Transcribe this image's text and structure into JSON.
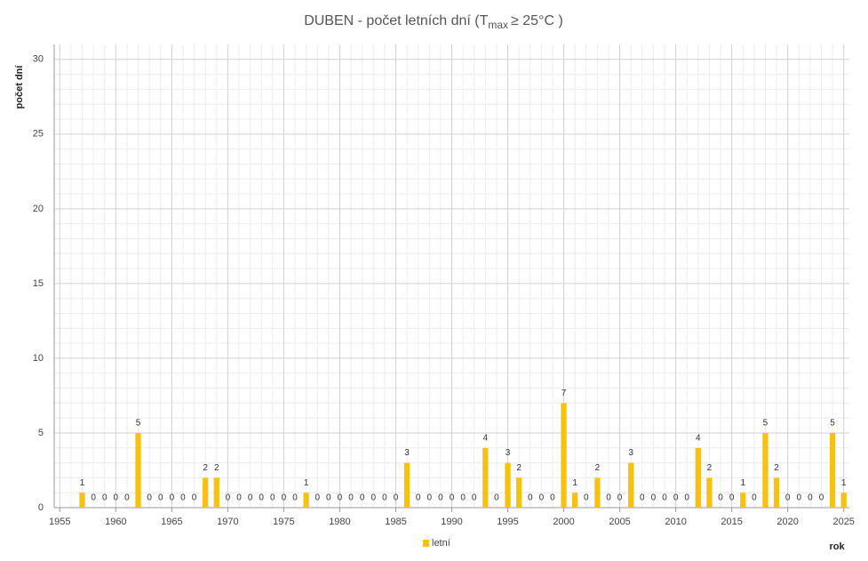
{
  "chart_data": {
    "type": "bar",
    "title": {
      "main": "DUBEN - počet letních dní (T",
      "sub": "max",
      "end": "≥ 25°C )"
    },
    "ylabel": "počet dní",
    "xlabel": "rok",
    "series": [
      {
        "name": "letní",
        "color": "#f5c211",
        "x": [
          1957,
          1958,
          1959,
          1960,
          1961,
          1962,
          1963,
          1964,
          1965,
          1966,
          1967,
          1968,
          1969,
          1970,
          1971,
          1972,
          1973,
          1974,
          1975,
          1976,
          1977,
          1978,
          1979,
          1980,
          1981,
          1982,
          1983,
          1984,
          1985,
          1986,
          1987,
          1988,
          1989,
          1990,
          1991,
          1992,
          1993,
          1994,
          1995,
          1996,
          1997,
          1998,
          1999,
          2000,
          2001,
          2002,
          2003,
          2004,
          2005,
          2006,
          2007,
          2008,
          2009,
          2010,
          2011,
          2012,
          2013,
          2014,
          2015,
          2016,
          2017,
          2018,
          2019,
          2020,
          2021,
          2022,
          2023,
          2024,
          2025
        ],
        "values": [
          1,
          0,
          0,
          0,
          0,
          5,
          0,
          0,
          0,
          0,
          0,
          2,
          2,
          0,
          0,
          0,
          0,
          0,
          0,
          0,
          1,
          0,
          0,
          0,
          0,
          0,
          0,
          0,
          0,
          3,
          0,
          0,
          0,
          0,
          0,
          0,
          4,
          0,
          3,
          2,
          0,
          0,
          0,
          7,
          1,
          0,
          2,
          0,
          0,
          3,
          0,
          0,
          0,
          0,
          0,
          4,
          2,
          0,
          0,
          1,
          0,
          5,
          2,
          0,
          0,
          0,
          0,
          5,
          1
        ]
      }
    ],
    "xlim": [
      1954.5,
      2025.5
    ],
    "xticks": [
      1955,
      1960,
      1965,
      1970,
      1975,
      1980,
      1985,
      1990,
      1995,
      2000,
      2005,
      2010,
      2015,
      2020,
      2025
    ],
    "ylim": [
      0,
      31
    ],
    "yticks": [
      0,
      5,
      10,
      15,
      20,
      25,
      30
    ],
    "grid": true,
    "legend": "bottom"
  }
}
